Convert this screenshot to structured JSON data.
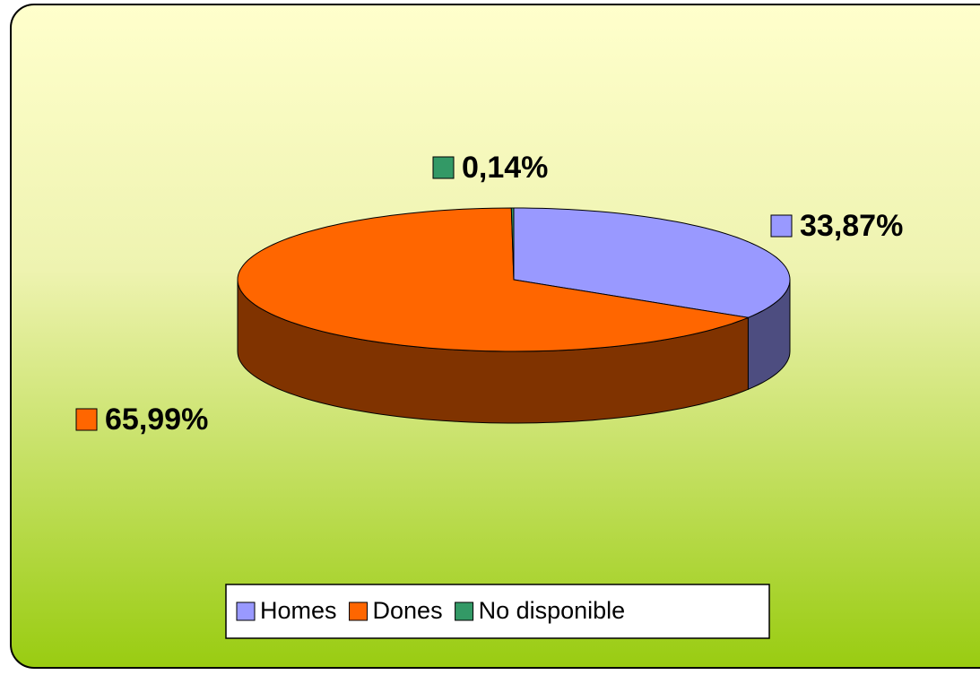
{
  "chart_data": {
    "type": "pie",
    "three_d": true,
    "categories": [
      "Homes",
      "Dones",
      "No disponible"
    ],
    "values": [
      33.87,
      65.99,
      0.14
    ],
    "value_labels": [
      "33,87%",
      "65,99%",
      "0,14%"
    ],
    "colors": [
      "#9999ff",
      "#ff6600",
      "#339966"
    ],
    "legend": "bottom"
  }
}
